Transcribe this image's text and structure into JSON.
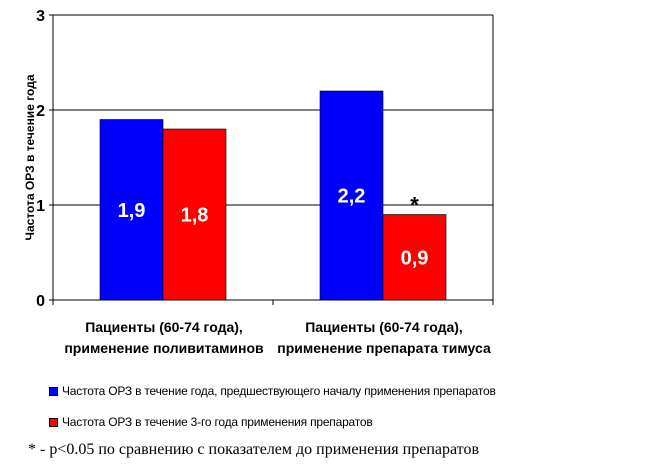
{
  "chart_data": {
    "type": "bar",
    "title": "",
    "ylabel": "Частота ОРЗ в течение года",
    "xlabel": "",
    "ylim": [
      0,
      3
    ],
    "yticks": [
      "0",
      "1",
      "2",
      "3"
    ],
    "grid": true,
    "categories": [
      [
        "Пациенты (60-74 года),",
        "применение поливитаминов"
      ],
      [
        "Пациенты (60-74 года),",
        "применение препарата тимуса"
      ]
    ],
    "series": [
      {
        "name": "Частота ОРЗ в течение года, предшествующего началу применения препаратов",
        "values": [
          1.9,
          2.2
        ],
        "labels": [
          "1,9",
          "2,2"
        ],
        "color": "#0000FF"
      },
      {
        "name": "Частота ОРЗ в течение 3-го года применения препаратов",
        "values": [
          1.8,
          0.9
        ],
        "labels": [
          "1,8",
          "0,9"
        ],
        "color": "#FF0000"
      }
    ],
    "annotations": [
      {
        "text": "*",
        "category": 1,
        "series": 1
      }
    ],
    "legend": "bottom",
    "footnote": "* - p<0.05 по сравнению с показателем до применения препаратов"
  }
}
